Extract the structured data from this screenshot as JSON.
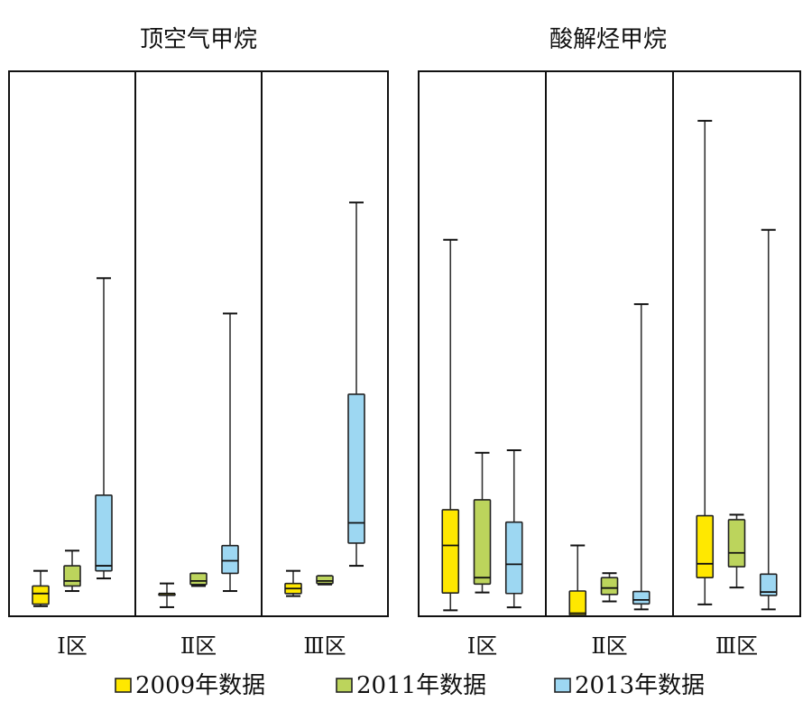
{
  "chart_data": [
    {
      "type": "box",
      "title": "顶空气甲烷",
      "groups": [
        "Ⅰ区",
        "Ⅱ区",
        "Ⅲ区"
      ],
      "series": [
        {
          "name": "2009年数据",
          "color": "#ffe800",
          "boxes": [
            {
              "min": 0.02,
              "q1": 0.024,
              "median": 0.045,
              "q3": 0.06,
              "max": 0.09
            },
            {
              "min": 0.018,
              "q1": 0.045,
              "median": 0.045,
              "q3": 0.045,
              "max": 0.065
            },
            {
              "min": 0.04,
              "q1": 0.045,
              "median": 0.055,
              "q3": 0.065,
              "max": 0.09
            }
          ]
        },
        {
          "name": "2011年数据",
          "color": "#bcd45c",
          "boxes": [
            {
              "min": 0.05,
              "q1": 0.06,
              "median": 0.07,
              "q3": 0.1,
              "max": 0.13
            },
            {
              "min": 0.06,
              "q1": 0.063,
              "median": 0.07,
              "q3": 0.085,
              "max": 0.085
            },
            {
              "min": 0.063,
              "q1": 0.065,
              "median": 0.07,
              "q3": 0.08,
              "max": 0.08
            }
          ]
        },
        {
          "name": "2013年数据",
          "color": "#9dd7f2",
          "boxes": [
            {
              "min": 0.075,
              "q1": 0.09,
              "median": 0.1,
              "q3": 0.24,
              "max": 0.67
            },
            {
              "min": 0.05,
              "q1": 0.085,
              "median": 0.11,
              "q3": 0.14,
              "max": 0.6
            },
            {
              "min": 0.1,
              "q1": 0.145,
              "median": 0.185,
              "q3": 0.44,
              "max": 0.82
            }
          ]
        }
      ],
      "ylim": [
        0,
        1.08
      ],
      "grid": false,
      "legend": "bottom"
    },
    {
      "type": "box",
      "title": "酸解烃甲烷",
      "groups": [
        "Ⅰ区",
        "Ⅱ区",
        "Ⅲ区"
      ],
      "series": [
        {
          "name": "2009年数据",
          "color": "#ffe800",
          "boxes": [
            {
              "min": 0.012,
              "q1": 0.047,
              "median": 0.143,
              "q3": 0.215,
              "max": 0.76
            },
            {
              "min": 0.0,
              "q1": 0.002,
              "median": 0.006,
              "q3": 0.051,
              "max": 0.143
            },
            {
              "min": 0.024,
              "q1": 0.078,
              "median": 0.106,
              "q3": 0.203,
              "max": 1.0
            }
          ]
        },
        {
          "name": "2011年数据",
          "color": "#bcd45c",
          "boxes": [
            {
              "min": 0.048,
              "q1": 0.065,
              "median": 0.078,
              "q3": 0.235,
              "max": 0.33
            },
            {
              "min": 0.03,
              "q1": 0.044,
              "median": 0.057,
              "q3": 0.078,
              "max": 0.087
            },
            {
              "min": 0.058,
              "q1": 0.1,
              "median": 0.128,
              "q3": 0.195,
              "max": 0.205
            }
          ]
        },
        {
          "name": "2013年数据",
          "color": "#9dd7f2",
          "boxes": [
            {
              "min": 0.018,
              "q1": 0.046,
              "median": 0.105,
              "q3": 0.19,
              "max": 0.335
            },
            {
              "min": 0.014,
              "q1": 0.025,
              "median": 0.033,
              "q3": 0.05,
              "max": 0.63
            },
            {
              "min": 0.014,
              "q1": 0.042,
              "median": 0.049,
              "q3": 0.085,
              "max": 0.78
            }
          ]
        }
      ],
      "ylim": [
        0,
        1.1
      ],
      "grid": false,
      "legend": "bottom"
    }
  ]
}
